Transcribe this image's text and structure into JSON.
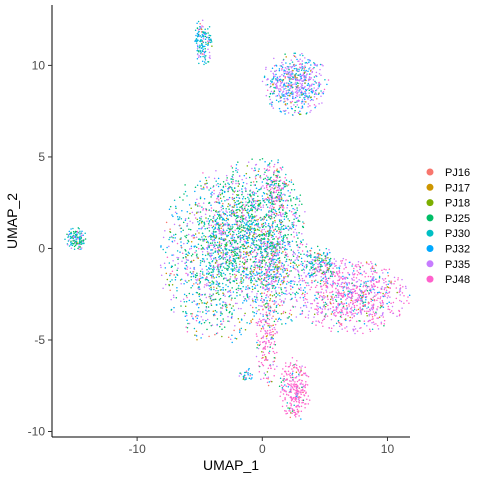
{
  "chart_data": {
    "type": "scatter",
    "title": "",
    "xlabel": "UMAP_1",
    "ylabel": "UMAP_2",
    "xlim": [
      -16.8,
      11.8
    ],
    "ylim": [
      -10.3,
      13.3
    ],
    "x_ticks": [
      {
        "value": -10,
        "label": "-10"
      },
      {
        "value": 0,
        "label": "0"
      },
      {
        "value": 10,
        "label": "10"
      }
    ],
    "y_ticks": [
      {
        "value": -10,
        "label": "-10"
      },
      {
        "value": -5,
        "label": "-5"
      },
      {
        "value": 0,
        "label": "0"
      },
      {
        "value": 5,
        "label": "5"
      },
      {
        "value": 10,
        "label": "10"
      }
    ],
    "grid": false,
    "legend": "right",
    "series": [
      {
        "name": "PJ16",
        "color": "#F8766D"
      },
      {
        "name": "PJ17",
        "color": "#CD9600"
      },
      {
        "name": "PJ18",
        "color": "#7CAE00"
      },
      {
        "name": "PJ25",
        "color": "#00BE67"
      },
      {
        "name": "PJ30",
        "color": "#00BFC4"
      },
      {
        "name": "PJ32",
        "color": "#00A9FF"
      },
      {
        "name": "PJ35",
        "color": "#C77CFF"
      },
      {
        "name": "PJ48",
        "color": "#FF61CC"
      }
    ],
    "clusters": [
      {
        "cx": -3.6,
        "cy": -0.5,
        "rx": 2.9,
        "ry": 3.0,
        "n": 1300,
        "mix": [
          0.04,
          0.03,
          0.05,
          0.22,
          0.16,
          0.18,
          0.27,
          0.05
        ]
      },
      {
        "cx": -0.6,
        "cy": 1.3,
        "rx": 2.6,
        "ry": 2.3,
        "n": 1050,
        "mix": [
          0.03,
          0.03,
          0.06,
          0.4,
          0.12,
          0.14,
          0.17,
          0.05
        ]
      },
      {
        "cx": 1.2,
        "cy": -1.2,
        "rx": 1.6,
        "ry": 2.3,
        "n": 600,
        "mix": [
          0.04,
          0.03,
          0.05,
          0.12,
          0.1,
          0.18,
          0.3,
          0.18
        ]
      },
      {
        "cx": 2.6,
        "cy": 9.0,
        "rx": 1.7,
        "ry": 1.1,
        "n": 600,
        "mix": [
          0.02,
          0.02,
          0.02,
          0.04,
          0.12,
          0.22,
          0.52,
          0.04
        ]
      },
      {
        "cx": 7.2,
        "cy": -2.6,
        "rx": 2.9,
        "ry": 1.3,
        "n": 850,
        "mix": [
          0.02,
          0.02,
          0.02,
          0.03,
          0.06,
          0.07,
          0.3,
          0.48
        ]
      },
      {
        "cx": 2.6,
        "cy": -7.7,
        "rx": 0.8,
        "ry": 1.1,
        "n": 280,
        "mix": [
          0.01,
          0.01,
          0.01,
          0.02,
          0.02,
          0.03,
          0.08,
          0.82
        ]
      },
      {
        "cx": 0.4,
        "cy": -5.0,
        "rx": 0.6,
        "ry": 1.6,
        "n": 170,
        "mix": [
          0.05,
          0.05,
          0.05,
          0.05,
          0.05,
          0.05,
          0.2,
          0.5
        ]
      },
      {
        "cx": -4.7,
        "cy": 11.3,
        "rx": 0.45,
        "ry": 0.9,
        "n": 150,
        "mix": [
          0.02,
          0.02,
          0.02,
          0.06,
          0.4,
          0.3,
          0.14,
          0.04
        ]
      },
      {
        "cx": -14.9,
        "cy": 0.5,
        "rx": 0.55,
        "ry": 0.4,
        "n": 130,
        "mix": [
          0.02,
          0.02,
          0.02,
          0.3,
          0.3,
          0.14,
          0.16,
          0.04
        ]
      },
      {
        "cx": 1.0,
        "cy": 3.2,
        "rx": 0.7,
        "ry": 1.1,
        "n": 160,
        "mix": [
          0.02,
          0.02,
          0.04,
          0.14,
          0.1,
          0.12,
          0.22,
          0.34
        ]
      },
      {
        "cx": 4.4,
        "cy": -1.0,
        "rx": 1.1,
        "ry": 0.7,
        "n": 220,
        "mix": [
          0.03,
          0.03,
          0.05,
          0.18,
          0.2,
          0.14,
          0.28,
          0.09
        ]
      },
      {
        "cx": -1.2,
        "cy": -7.0,
        "rx": 0.4,
        "ry": 0.35,
        "n": 30,
        "mix": [
          0.05,
          0.05,
          0.05,
          0.1,
          0.3,
          0.2,
          0.15,
          0.1
        ]
      }
    ]
  }
}
